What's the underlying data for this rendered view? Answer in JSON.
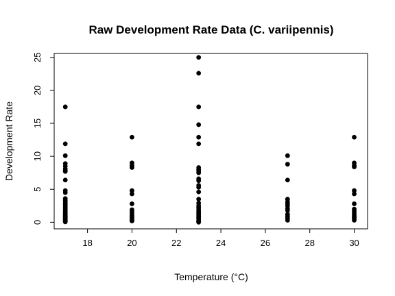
{
  "chart_data": {
    "type": "scatter",
    "title": "Raw Development Rate Data (C. variipennis)",
    "xlabel": "Temperature (°C)",
    "ylabel": "Development Rate",
    "xlim": [
      16.5,
      30.6
    ],
    "ylim": [
      -1,
      25.6
    ],
    "xticks": [
      18,
      20,
      22,
      24,
      26,
      28,
      30
    ],
    "xtick_labels": [
      "18",
      "20",
      "22",
      "24",
      "26",
      "28",
      "30"
    ],
    "yticks": [
      0,
      5,
      10,
      15,
      20,
      25
    ],
    "ytick_labels": [
      "0",
      "5",
      "10",
      "15",
      "20",
      "25"
    ],
    "grid": false,
    "legend": "none",
    "marker_color": "#000000",
    "series": [
      {
        "x": [
          17,
          17,
          17,
          17,
          17,
          17,
          17,
          17,
          17,
          17,
          17,
          17,
          17,
          17,
          17,
          17,
          17,
          17,
          17,
          17,
          17,
          17,
          17,
          17,
          17,
          17,
          17,
          17,
          17,
          17,
          17,
          17,
          17,
          17,
          17,
          17,
          17,
          17,
          17,
          17,
          17,
          17,
          20,
          20,
          20,
          20,
          20,
          20,
          20,
          20,
          20,
          20,
          20,
          20,
          20,
          20,
          20,
          20,
          23,
          23,
          23,
          23,
          23,
          23,
          23,
          23,
          23,
          23,
          23,
          23,
          23,
          23,
          23,
          23,
          23,
          23,
          23,
          23,
          23,
          23,
          23,
          23,
          23,
          23,
          23,
          23,
          23,
          23,
          23,
          23,
          27,
          27,
          27,
          27,
          27,
          27,
          27,
          27,
          27,
          27,
          27,
          27,
          27,
          30,
          30,
          30,
          30,
          30,
          30,
          30,
          30,
          30,
          30,
          30,
          30,
          30,
          30,
          30
        ],
        "y": [
          17.5,
          11.9,
          10.1,
          8.9,
          8.5,
          8.1,
          7.9,
          7.7,
          6.4,
          4.8,
          4.5,
          3.6,
          3.3,
          3.1,
          2.9,
          2.7,
          2.5,
          2.3,
          2.1,
          1.9,
          1.7,
          1.6,
          1.5,
          1.4,
          1.3,
          1.2,
          1.1,
          1.0,
          0.9,
          0.8,
          0.7,
          0.6,
          0.5,
          0.45,
          0.4,
          0.35,
          0.3,
          0.25,
          0.2,
          0.15,
          0.1,
          0.05,
          12.9,
          9.0,
          8.6,
          8.3,
          4.8,
          4.3,
          2.8,
          1.9,
          1.6,
          1.3,
          1.0,
          0.8,
          0.6,
          0.4,
          0.3,
          0.2,
          25.0,
          22.6,
          17.5,
          14.8,
          12.9,
          11.9,
          8.3,
          8.0,
          7.8,
          7.5,
          6.6,
          6.3,
          5.6,
          5.3,
          4.6,
          3.5,
          2.9,
          2.5,
          2.2,
          1.9,
          1.7,
          1.5,
          1.3,
          1.1,
          0.9,
          0.7,
          0.5,
          0.3,
          0.2,
          0.1,
          0.0,
          0.05,
          10.1,
          8.8,
          6.4,
          3.5,
          3.1,
          2.8,
          2.5,
          2.1,
          1.8,
          1.2,
          0.9,
          0.6,
          0.3,
          12.9,
          9.0,
          8.6,
          8.4,
          4.8,
          4.3,
          2.8,
          2.0,
          1.7,
          1.4,
          1.1,
          0.9,
          0.7,
          0.5,
          0.3
        ]
      }
    ]
  }
}
